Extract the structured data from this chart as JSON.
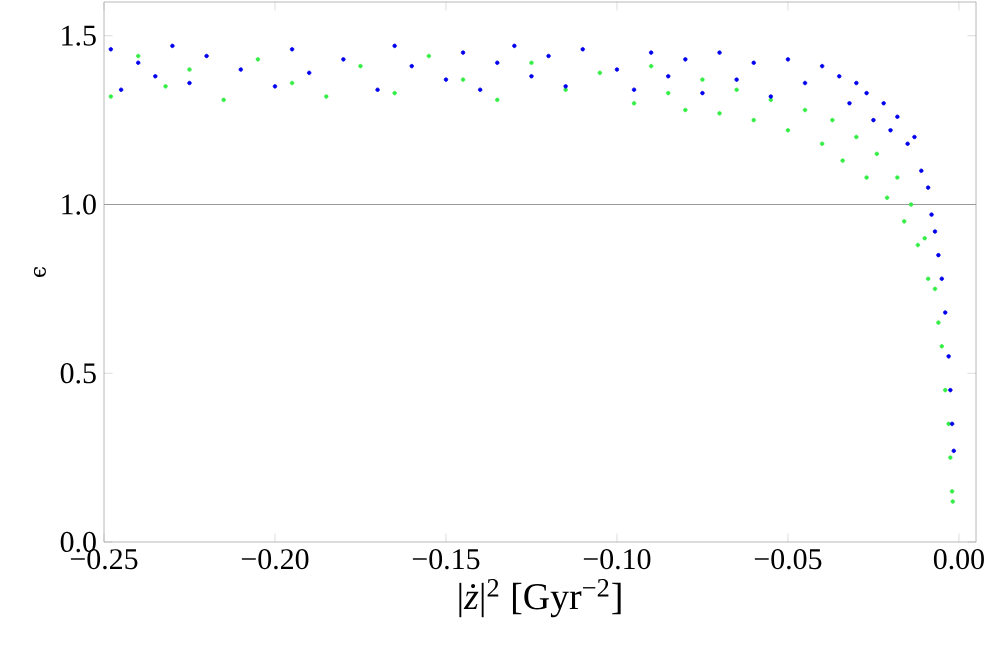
{
  "chart_data": {
    "type": "scatter",
    "xlabel": "|*ż*|$^{2}$  [Gyr$^{−2}$]",
    "ylabel": "ϵ",
    "xlim": [
      -0.25,
      0.005
    ],
    "ylim": [
      0,
      1.6
    ],
    "xticks": [
      {
        "value": -0.25,
        "label": "−0.25"
      },
      {
        "value": -0.2,
        "label": "−0.20"
      },
      {
        "value": -0.15,
        "label": "−0.15"
      },
      {
        "value": -0.1,
        "label": "−0.10"
      },
      {
        "value": -0.05,
        "label": "−0.05"
      },
      {
        "value": 0,
        "label": "0.00"
      }
    ],
    "yticks": [
      {
        "value": 0,
        "label": "0.0"
      },
      {
        "value": 0.5,
        "label": "0.5"
      },
      {
        "value": 1,
        "label": "1.0"
      },
      {
        "value": 1.5,
        "label": "1.5"
      }
    ],
    "marker": "circle",
    "ref_lines": [
      {
        "axis": "y",
        "value": 1,
        "color": "#999999"
      }
    ],
    "series": [
      {
        "color": "#33ee44",
        "x": [
          -0.248,
          -0.24,
          -0.232,
          -0.225,
          -0.215,
          -0.205,
          -0.195,
          -0.185,
          -0.175,
          -0.165,
          -0.155,
          -0.145,
          -0.135,
          -0.125,
          -0.115,
          -0.105,
          -0.095,
          -0.09,
          -0.085,
          -0.08,
          -0.075,
          -0.07,
          -0.065,
          -0.06,
          -0.055,
          -0.05,
          -0.045,
          -0.04,
          -0.037,
          -0.034,
          -0.03,
          -0.027,
          -0.024,
          -0.021,
          -0.018,
          -0.016,
          -0.014,
          -0.012,
          -0.01,
          -0.009,
          -0.007,
          -0.006,
          -0.005,
          -0.004,
          -0.003,
          -0.0025,
          -0.002,
          -0.0018
        ],
        "values": [
          1.32,
          1.44,
          1.35,
          1.4,
          1.31,
          1.43,
          1.36,
          1.32,
          1.41,
          1.33,
          1.44,
          1.37,
          1.31,
          1.42,
          1.34,
          1.39,
          1.3,
          1.41,
          1.33,
          1.28,
          1.37,
          1.27,
          1.34,
          1.25,
          1.31,
          1.22,
          1.28,
          1.18,
          1.25,
          1.13,
          1.2,
          1.08,
          1.15,
          1.02,
          1.08,
          0.95,
          1.0,
          0.88,
          0.9,
          0.78,
          0.75,
          0.65,
          0.58,
          0.45,
          0.35,
          0.25,
          0.15,
          0.12
        ]
      },
      {
        "color": "#0000ee",
        "x": [
          -0.248,
          -0.245,
          -0.24,
          -0.235,
          -0.23,
          -0.225,
          -0.22,
          -0.21,
          -0.2,
          -0.195,
          -0.19,
          -0.18,
          -0.17,
          -0.165,
          -0.16,
          -0.15,
          -0.145,
          -0.14,
          -0.135,
          -0.13,
          -0.125,
          -0.12,
          -0.115,
          -0.11,
          -0.1,
          -0.095,
          -0.09,
          -0.085,
          -0.08,
          -0.075,
          -0.07,
          -0.065,
          -0.06,
          -0.055,
          -0.05,
          -0.045,
          -0.04,
          -0.035,
          -0.032,
          -0.03,
          -0.027,
          -0.025,
          -0.022,
          -0.02,
          -0.018,
          -0.015,
          -0.013,
          -0.011,
          -0.009,
          -0.008,
          -0.007,
          -0.006,
          -0.005,
          -0.004,
          -0.003,
          -0.0025,
          -0.002,
          -0.0015
        ],
        "values": [
          1.46,
          1.34,
          1.42,
          1.38,
          1.47,
          1.36,
          1.44,
          1.4,
          1.35,
          1.46,
          1.39,
          1.43,
          1.34,
          1.47,
          1.41,
          1.37,
          1.45,
          1.34,
          1.42,
          1.47,
          1.38,
          1.44,
          1.35,
          1.46,
          1.4,
          1.34,
          1.45,
          1.38,
          1.43,
          1.33,
          1.45,
          1.37,
          1.42,
          1.32,
          1.43,
          1.36,
          1.41,
          1.38,
          1.3,
          1.36,
          1.33,
          1.25,
          1.3,
          1.22,
          1.26,
          1.18,
          1.2,
          1.1,
          1.05,
          0.97,
          0.92,
          0.85,
          0.78,
          0.68,
          0.55,
          0.45,
          0.35,
          0.27
        ]
      }
    ]
  }
}
